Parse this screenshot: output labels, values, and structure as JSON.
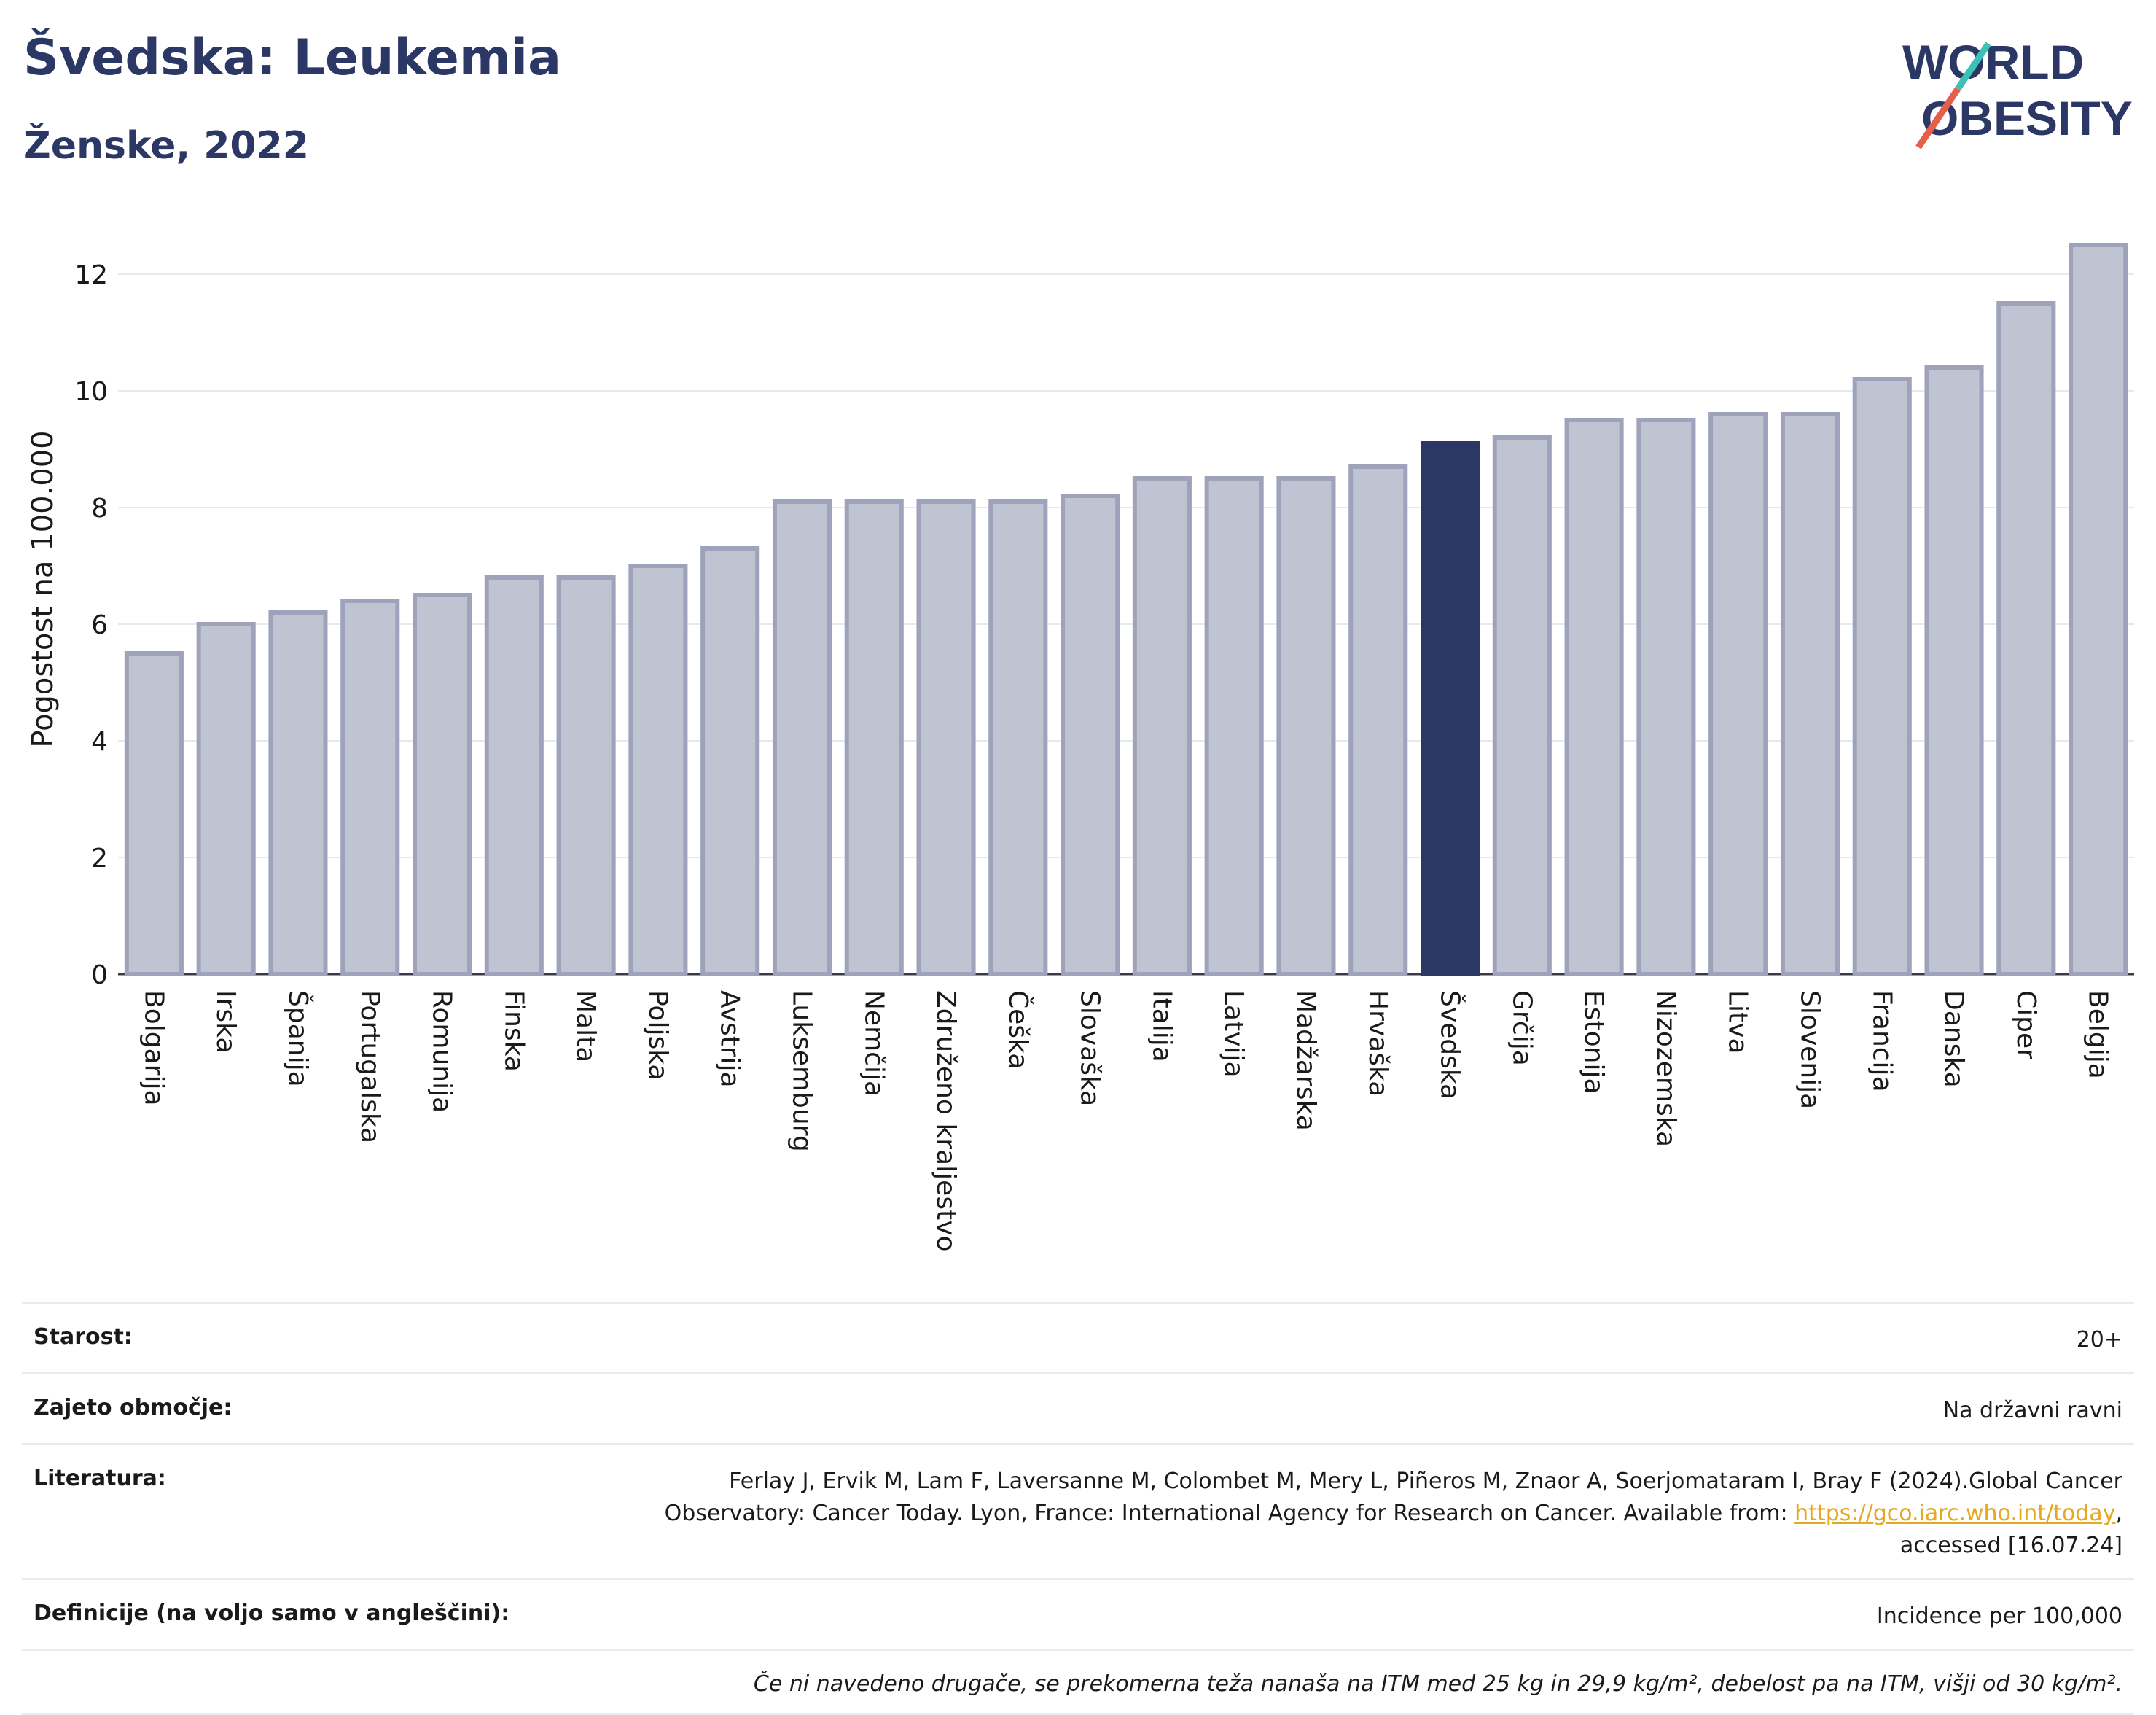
{
  "header": {
    "title": "Švedska: Leukemia",
    "subtitle": "Ženske, 2022"
  },
  "logo": {
    "line1": "WORLD",
    "line2": "OBESITY",
    "slash_colors": [
      "#e5604b",
      "#3cc1b7"
    ]
  },
  "colors": {
    "bar": "#c0c3d1",
    "bar_stroke": "#9ea3bb",
    "highlight": "#2b3764",
    "text": "#2b3764"
  },
  "chart_data": {
    "type": "bar",
    "ylabel": "Pogostost na 100.000",
    "ylim": [
      0,
      12.7
    ],
    "yticks": [
      0,
      2,
      4,
      6,
      8,
      10,
      12
    ],
    "grid": true,
    "highlight": "Švedska",
    "categories": [
      "Bolgarija",
      "Irska",
      "Španija",
      "Portugalska",
      "Romunija",
      "Finska",
      "Malta",
      "Poljska",
      "Avstrija",
      "Luksemburg",
      "Nemčija",
      "Združeno kraljestvo",
      "Češka",
      "Slovaška",
      "Italija",
      "Latvija",
      "Madžarska",
      "Hrvaška",
      "Švedska",
      "Grčija",
      "Estonija",
      "Nizozemska",
      "Litva",
      "Slovenija",
      "Francija",
      "Danska",
      "Ciper",
      "Belgija"
    ],
    "values": [
      5.5,
      6.0,
      6.2,
      6.4,
      6.5,
      6.8,
      6.8,
      7.0,
      7.3,
      8.1,
      8.1,
      8.1,
      8.1,
      8.2,
      8.5,
      8.5,
      8.5,
      8.7,
      9.1,
      9.2,
      9.5,
      9.5,
      9.6,
      9.6,
      10.2,
      10.4,
      11.5,
      12.5
    ]
  },
  "info": {
    "age_label": "Starost:",
    "age_value": "20+",
    "area_label": "Zajeto območje:",
    "area_value": "Na državni ravni",
    "lit_label": "Literatura:",
    "lit_text1": "Ferlay J, Ervik M, Lam F, Laversanne M, Colombet M, Mery L, Piñeros M, Znaor A, Soerjomataram I, Bray F (2024).Global Cancer Observatory: Cancer Today. Lyon, France: International Agency for Research on Cancer. Available from: ",
    "lit_link": "https://gco.iarc.who.int/today",
    "lit_text2": ", accessed [16.07.24]",
    "def_label": "Definicije (na voljo samo v angleščini):",
    "def_value": "Incidence per 100,000",
    "note": "Če ni navedeno drugače, se prekomerna teža nanaša na ITM med 25 kg in 29,9 kg/m², debelost pa na ITM, višji od 30 kg/m²."
  }
}
